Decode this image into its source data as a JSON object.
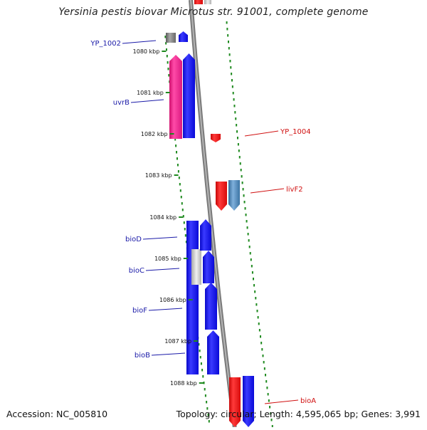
{
  "title": "Yersinia pestis biovar Microtus str. 91001, complete genome",
  "footer": {
    "accession": "Accession: NC_005810",
    "topology": "Topology: circular; Length: 4,595,065 bp; Genes: 3,991"
  },
  "colors": {
    "backbone": "#8a8a8a",
    "tick": "#1f8a1f",
    "forward_label": "#1a1aa8",
    "reverse_label": "#d01010",
    "gene_blue": "#1010ee",
    "gene_red": "#ee1010",
    "gene_pink": "#ee2288",
    "gene_steel": "#4682b4",
    "gene_gray": "#808080"
  },
  "ticks": [
    "1080 kbp",
    "1081 kbp",
    "1082 kbp",
    "1083 kbp",
    "1084 kbp",
    "1085 kbp",
    "1086 kbp",
    "1087 kbp",
    "1088 kbp"
  ],
  "forward_labels": [
    "YP_1002",
    "uvrB",
    "bioD",
    "bioC",
    "bioF",
    "bioB"
  ],
  "reverse_labels": [
    "YP_1004",
    "livF2",
    "bioA"
  ]
}
